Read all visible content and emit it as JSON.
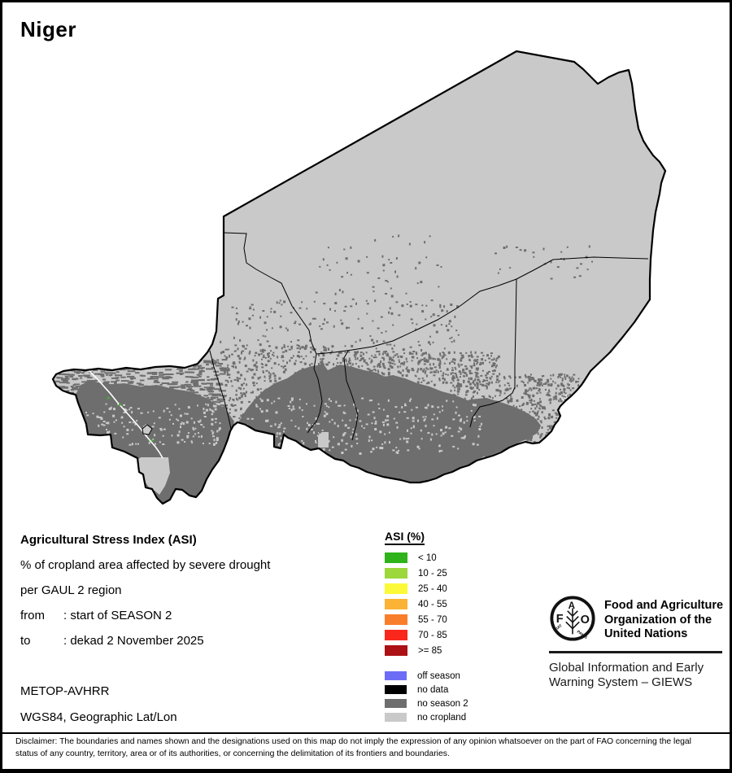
{
  "page": {
    "title": "Niger"
  },
  "info": {
    "heading": "Agricultural Stress Index (ASI)",
    "line1": "% of cropland area affected by severe drought",
    "line2": "per GAUL 2 region",
    "from_label": "from",
    "from_value": ": start of SEASON 2",
    "to_label": "to",
    "to_value": ": dekad 2 November 2025",
    "sensor": "METOP-AVHRR",
    "projection": "WGS84, Geographic Lat/Lon"
  },
  "legend": {
    "title": "ASI (%)",
    "classes": [
      {
        "label": "< 10",
        "color": "#2EB31A"
      },
      {
        "label": "10 - 25",
        "color": "#9CD73C"
      },
      {
        "label": "25 - 40",
        "color": "#FCF938"
      },
      {
        "label": "40 - 55",
        "color": "#FBB336"
      },
      {
        "label": "55 - 70",
        "color": "#F97E2B"
      },
      {
        "label": "70 - 85",
        "color": "#F9271C"
      },
      {
        "label": ">= 85",
        "color": "#AC1115"
      }
    ],
    "extras": [
      {
        "label": "off season",
        "color": "#6C6CF7"
      },
      {
        "label": "no data",
        "color": "#000000"
      },
      {
        "label": "no season 2",
        "color": "#6E6E6E"
      },
      {
        "label": "no cropland",
        "color": "#C9C9C9"
      }
    ]
  },
  "map": {
    "country": "Niger",
    "colors": {
      "no_cropland": "#C9C9C9",
      "no_season2": "#6E6E6E",
      "border": "#000000",
      "river": "#FFFFFF",
      "asi_dot_green": "#3DBB2A",
      "pale_patch": "#E0E0E0"
    }
  },
  "fao": {
    "logo_letters": "FAO",
    "motto_left": "FIAT",
    "motto_right": "PANIS",
    "org_name": "Food and Agriculture\nOrganization of the\nUnited Nations",
    "giews": "Global Information and Early\nWarning System – GIEWS"
  },
  "disclaimer": "Disclaimer: The boundaries and names shown and the designations used on this map do not imply the expression of any opinion whatsoever on the part of FAO concerning the legal status of any country, territory, area or of its authorities, or concerning the delimitation of its frontiers and boundaries."
}
